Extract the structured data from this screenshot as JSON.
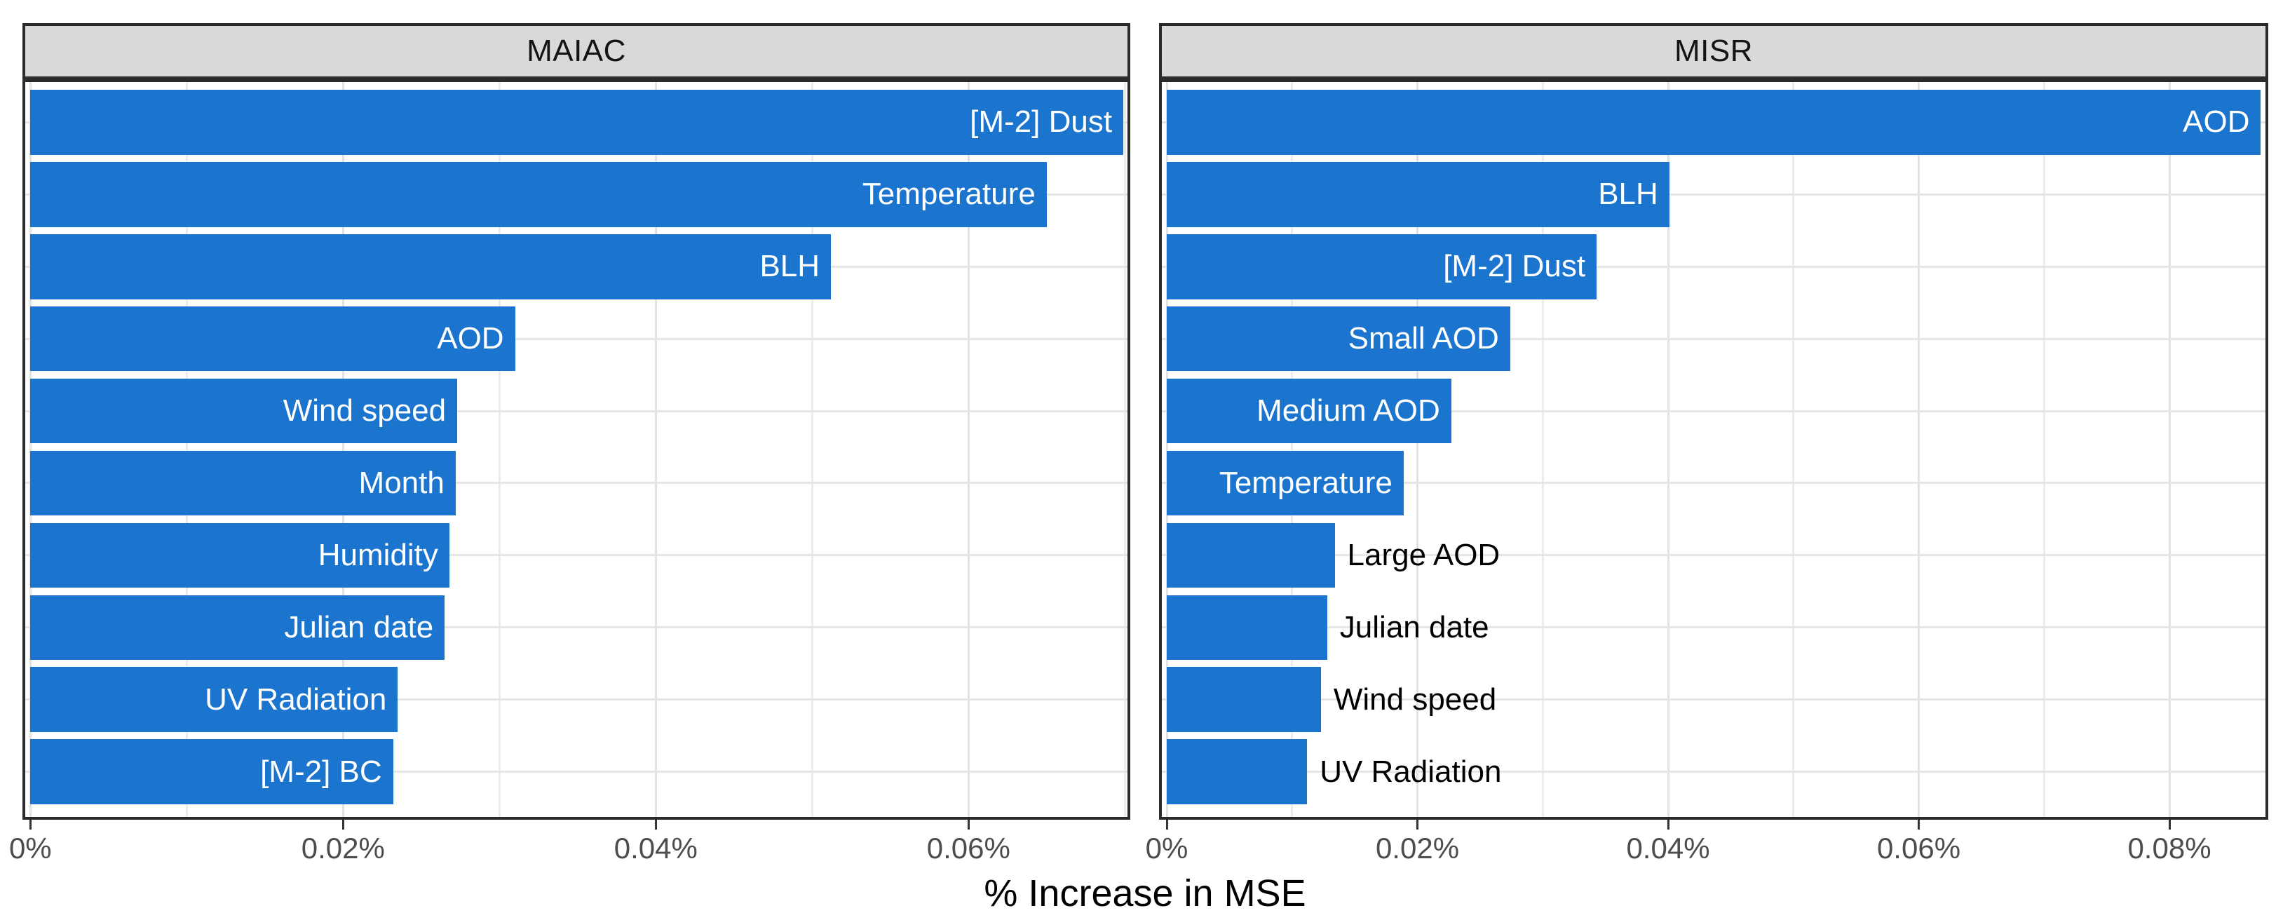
{
  "axis_title": "% Increase in MSE",
  "facets": {
    "left": {
      "title": "MAIAC"
    },
    "right": {
      "title": "MISR"
    }
  },
  "style": {
    "bar_color": "#1b74ce",
    "strip_background": "#d9d9d9",
    "panel_border_color": "#2b2b2b",
    "grid_major_color": "#e2e2e2",
    "grid_minor_color": "#ececec",
    "tick_mark_color": "#333333",
    "tick_label_color": "#4d4d4d",
    "bar_label_inside_color": "#ffffff",
    "bar_label_outside_color": "#000000"
  },
  "chart_data": [
    {
      "type": "bar",
      "orientation": "horizontal",
      "facet": "MAIAC",
      "title": "MAIAC",
      "xlabel": "% Increase in MSE",
      "unit": "percent",
      "categories": [
        "[M-2] Dust",
        "Temperature",
        "BLH",
        "AOD",
        "Wind speed",
        "Month",
        "Humidity",
        "Julian date",
        "UV Radiation",
        "[M-2] BC"
      ],
      "values": [
        0.0699,
        0.065,
        0.0512,
        0.031,
        0.0273,
        0.0272,
        0.0268,
        0.0265,
        0.0235,
        0.0232
      ],
      "xlim": [
        0,
        0.0705
      ],
      "x_major_ticks": [
        0,
        0.02,
        0.04,
        0.06
      ],
      "x_major_tick_labels": [
        "0%",
        "0.02%",
        "0.04%",
        "0.06%"
      ],
      "x_minor_ticks": [
        0.01,
        0.03,
        0.05,
        0.07
      ],
      "grid": true,
      "legend": "none"
    },
    {
      "type": "bar",
      "orientation": "horizontal",
      "facet": "MISR",
      "title": "MISR",
      "xlabel": "% Increase in MSE",
      "unit": "percent",
      "categories": [
        "AOD",
        "BLH",
        "[M-2] Dust",
        "Small AOD",
        "Medium AOD",
        "Temperature",
        "Large AOD",
        "Julian date",
        "Wind speed",
        "UV Radiation"
      ],
      "values": [
        0.0873,
        0.0401,
        0.0343,
        0.0274,
        0.0227,
        0.0189,
        0.0134,
        0.0128,
        0.0123,
        0.0112
      ],
      "xlim": [
        0,
        0.0885
      ],
      "x_major_ticks": [
        0,
        0.02,
        0.04,
        0.06,
        0.08
      ],
      "x_major_tick_labels": [
        "0%",
        "0.02%",
        "0.04%",
        "0.06%",
        "0.08%"
      ],
      "x_minor_ticks": [
        0.01,
        0.03,
        0.05,
        0.07
      ],
      "grid": true,
      "legend": "none"
    }
  ]
}
